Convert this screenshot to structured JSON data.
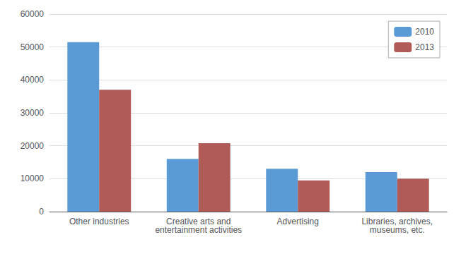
{
  "chart_data": {
    "type": "bar",
    "categories": [
      "Other industries",
      "Creative arts and\nentertainment activities",
      "Advertising",
      "Libraries, archives,\nmuseums, etc."
    ],
    "series": [
      {
        "name": "2010",
        "color": "#5B9BD5",
        "values": [
          51500,
          16000,
          13000,
          12000
        ]
      },
      {
        "name": "2013",
        "color": "#B05B57",
        "values": [
          37000,
          20800,
          9500,
          10000
        ]
      }
    ],
    "ylim": [
      0,
      60000
    ],
    "yticks": [
      0,
      10000,
      20000,
      30000,
      40000,
      50000,
      60000
    ],
    "grid": true,
    "legend": "upper right"
  }
}
